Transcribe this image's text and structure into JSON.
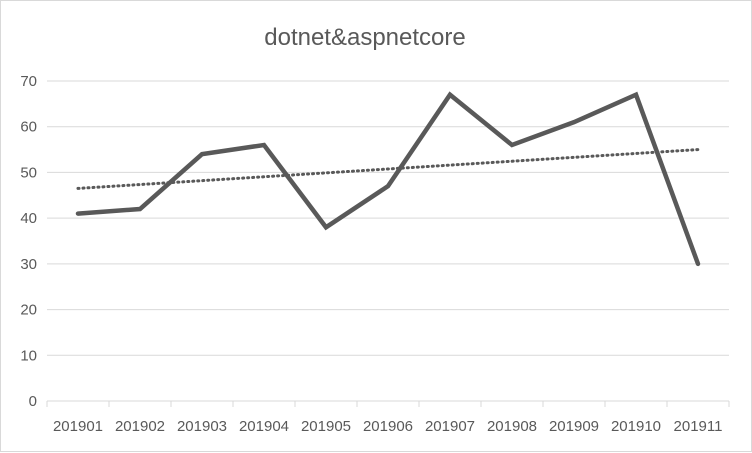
{
  "chart_data": {
    "type": "line",
    "title": "dotnet&aspnetcore",
    "categories": [
      "201901",
      "201902",
      "201903",
      "201904",
      "201905",
      "201906",
      "201907",
      "201908",
      "201909",
      "201910",
      "201911"
    ],
    "series": [
      {
        "values": [
          41,
          42,
          54,
          56,
          38,
          47,
          67,
          56,
          61,
          67,
          30
        ],
        "color": "#595959"
      }
    ],
    "trendline": {
      "type": "linear",
      "style": "dotted",
      "color": "#595959",
      "start": 46.5,
      "end": 55
    },
    "ylim": [
      0,
      70
    ],
    "yticks": [
      0,
      10,
      20,
      30,
      40,
      50,
      60,
      70
    ],
    "grid": true,
    "legend": "none"
  }
}
